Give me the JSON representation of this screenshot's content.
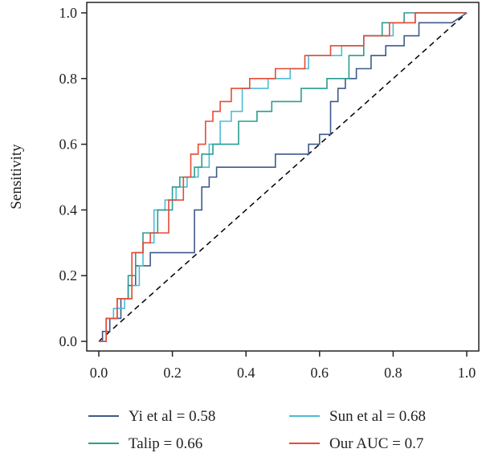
{
  "chart_data": {
    "type": "line",
    "title": "",
    "xlabel": "",
    "ylabel": "Sensitivity",
    "xlim": [
      0,
      1
    ],
    "ylim": [
      0,
      1
    ],
    "x_ticks": [
      "0.0",
      "0.2",
      "0.4",
      "0.6",
      "0.8",
      "1.0"
    ],
    "y_ticks": [
      "0.0",
      "0.2",
      "0.4",
      "0.6",
      "0.8",
      "1.0"
    ],
    "grid": false,
    "legend_position": "bottom",
    "reference_line": {
      "style": "dashed",
      "color": "#000000",
      "from": [
        0,
        0
      ],
      "to": [
        1,
        1
      ]
    },
    "series": [
      {
        "name": "Yi et al = 0.58",
        "color": "#3e5a8a",
        "x": [
          0.0,
          0.01,
          0.01,
          0.03,
          0.03,
          0.06,
          0.06,
          0.08,
          0.08,
          0.1,
          0.1,
          0.14,
          0.14,
          0.26,
          0.26,
          0.28,
          0.28,
          0.3,
          0.3,
          0.32,
          0.32,
          0.48,
          0.48,
          0.57,
          0.57,
          0.6,
          0.6,
          0.63,
          0.63,
          0.65,
          0.65,
          0.67,
          0.67,
          0.7,
          0.7,
          0.74,
          0.74,
          0.78,
          0.78,
          0.83,
          0.83,
          0.87,
          0.87,
          0.96,
          1.0
        ],
        "y": [
          0.0,
          0.0,
          0.03,
          0.03,
          0.07,
          0.07,
          0.13,
          0.13,
          0.17,
          0.17,
          0.23,
          0.23,
          0.27,
          0.27,
          0.4,
          0.4,
          0.47,
          0.47,
          0.5,
          0.5,
          0.53,
          0.53,
          0.57,
          0.57,
          0.6,
          0.6,
          0.63,
          0.63,
          0.73,
          0.73,
          0.77,
          0.77,
          0.8,
          0.8,
          0.83,
          0.83,
          0.87,
          0.87,
          0.9,
          0.9,
          0.93,
          0.93,
          0.97,
          0.97,
          1.0
        ]
      },
      {
        "name": "Sun et al = 0.68",
        "color": "#4dbbd5",
        "x": [
          0.0,
          0.02,
          0.02,
          0.04,
          0.04,
          0.07,
          0.07,
          0.09,
          0.09,
          0.11,
          0.11,
          0.12,
          0.12,
          0.15,
          0.15,
          0.18,
          0.18,
          0.21,
          0.21,
          0.24,
          0.24,
          0.27,
          0.27,
          0.3,
          0.3,
          0.33,
          0.33,
          0.36,
          0.36,
          0.39,
          0.39,
          0.46,
          0.46,
          0.52,
          0.52,
          0.57,
          0.57,
          0.66,
          0.66,
          0.72,
          0.72,
          0.8,
          0.8,
          0.86,
          0.86,
          0.96,
          1.0
        ],
        "y": [
          0.0,
          0.0,
          0.07,
          0.07,
          0.1,
          0.1,
          0.13,
          0.13,
          0.17,
          0.17,
          0.23,
          0.23,
          0.3,
          0.3,
          0.4,
          0.4,
          0.43,
          0.43,
          0.47,
          0.47,
          0.5,
          0.5,
          0.53,
          0.53,
          0.6,
          0.6,
          0.67,
          0.67,
          0.7,
          0.7,
          0.77,
          0.77,
          0.8,
          0.8,
          0.83,
          0.83,
          0.87,
          0.87,
          0.9,
          0.9,
          0.93,
          0.93,
          0.97,
          0.97,
          1.0,
          1.0,
          1.0
        ]
      },
      {
        "name": "Talip = 0.66",
        "color": "#2a9d8f",
        "x": [
          0.0,
          0.02,
          0.02,
          0.05,
          0.05,
          0.08,
          0.08,
          0.1,
          0.1,
          0.12,
          0.12,
          0.16,
          0.16,
          0.2,
          0.2,
          0.22,
          0.22,
          0.26,
          0.26,
          0.28,
          0.28,
          0.31,
          0.31,
          0.38,
          0.38,
          0.43,
          0.43,
          0.47,
          0.47,
          0.55,
          0.55,
          0.62,
          0.62,
          0.68,
          0.68,
          0.72,
          0.72,
          0.77,
          0.77,
          0.83,
          0.83,
          0.9,
          0.9,
          1.0
        ],
        "y": [
          0.0,
          0.0,
          0.07,
          0.07,
          0.13,
          0.13,
          0.2,
          0.2,
          0.27,
          0.27,
          0.33,
          0.33,
          0.4,
          0.4,
          0.47,
          0.47,
          0.5,
          0.5,
          0.53,
          0.53,
          0.57,
          0.57,
          0.6,
          0.6,
          0.67,
          0.67,
          0.7,
          0.7,
          0.73,
          0.73,
          0.77,
          0.77,
          0.8,
          0.8,
          0.87,
          0.87,
          0.93,
          0.93,
          0.97,
          0.97,
          1.0,
          1.0,
          1.0,
          1.0
        ]
      },
      {
        "name": "Our AUC = 0.7",
        "color": "#e64b35",
        "x": [
          0.0,
          0.02,
          0.02,
          0.05,
          0.05,
          0.09,
          0.09,
          0.12,
          0.12,
          0.14,
          0.14,
          0.19,
          0.19,
          0.23,
          0.23,
          0.25,
          0.25,
          0.27,
          0.27,
          0.29,
          0.29,
          0.31,
          0.31,
          0.33,
          0.33,
          0.36,
          0.36,
          0.41,
          0.41,
          0.48,
          0.48,
          0.56,
          0.56,
          0.63,
          0.63,
          0.72,
          0.72,
          0.79,
          0.79,
          0.86,
          0.86,
          0.88,
          0.88,
          1.0
        ],
        "y": [
          0.0,
          0.0,
          0.07,
          0.07,
          0.13,
          0.13,
          0.27,
          0.27,
          0.3,
          0.3,
          0.33,
          0.33,
          0.43,
          0.43,
          0.5,
          0.5,
          0.57,
          0.57,
          0.6,
          0.6,
          0.67,
          0.67,
          0.7,
          0.7,
          0.73,
          0.73,
          0.77,
          0.77,
          0.8,
          0.8,
          0.83,
          0.83,
          0.87,
          0.87,
          0.9,
          0.9,
          0.93,
          0.93,
          0.97,
          0.97,
          1.0,
          1.0,
          1.0,
          1.0
        ]
      }
    ]
  }
}
